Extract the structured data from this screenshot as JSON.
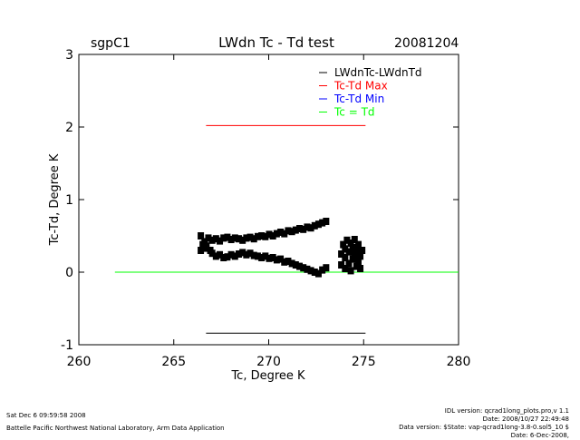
{
  "header": {
    "site": "sgpC1",
    "title": "LWdn Tc - Td test",
    "date": "20081204"
  },
  "footer": {
    "left": [
      "Sat Dec  6 09:59:58 2008",
      "Battelle Pacific Northwest National Laboratory, Arm Data Application"
    ],
    "right": [
      "IDL version: qcrad1long_plots.pro,v 1.1",
      "Date: 2008/10/27 22:49:48",
      "Data version: $State: vap-qcrad1long-3.8-0.sol5_10 $",
      "Date: 6-Dec-2008,"
    ]
  },
  "chart_data": {
    "type": "scatter",
    "xlabel": "Tc, Degree K",
    "ylabel": "Tc-Td, Degree K",
    "xlim": [
      260,
      280
    ],
    "ylim": [
      -1,
      3
    ],
    "xticks": [
      "260",
      "265",
      "270",
      "275",
      "280"
    ],
    "yticks": [
      "-1",
      "0",
      "1",
      "2",
      "3"
    ],
    "grid": false,
    "legend_placement": "top-right",
    "legend": [
      {
        "label": "LWdnTc-LWdnTd",
        "color": "#000000"
      },
      {
        "label": "Tc-Td Max",
        "color": "#ff0000"
      },
      {
        "label": "Tc-Td Min",
        "color": "#0000ff"
      },
      {
        "label": "Tc = Td",
        "color": "#00ff00"
      }
    ],
    "lines": [
      {
        "name": "Tc-Td Max",
        "color": "#ff0000",
        "x": [
          266.7,
          275.1
        ],
        "y": [
          2.02,
          2.02
        ]
      },
      {
        "name": "Tc-Td Min",
        "color": "#000000",
        "x": [
          266.7,
          275.1
        ],
        "y": [
          -0.84,
          -0.84
        ]
      },
      {
        "name": "Tc = Td",
        "color": "#00ff00",
        "x": [
          261.9,
          280
        ],
        "y": [
          0,
          0
        ]
      }
    ],
    "series": [
      {
        "name": "LWdnTc-LWdnTd",
        "color": "#000000",
        "points": [
          [
            266.4,
            0.5
          ],
          [
            266.6,
            0.42
          ],
          [
            266.8,
            0.47
          ],
          [
            267.0,
            0.44
          ],
          [
            267.2,
            0.46
          ],
          [
            267.4,
            0.43
          ],
          [
            267.6,
            0.47
          ],
          [
            267.8,
            0.48
          ],
          [
            268.0,
            0.45
          ],
          [
            268.2,
            0.47
          ],
          [
            268.4,
            0.46
          ],
          [
            268.6,
            0.44
          ],
          [
            268.8,
            0.47
          ],
          [
            269.0,
            0.48
          ],
          [
            269.2,
            0.46
          ],
          [
            269.4,
            0.49
          ],
          [
            269.6,
            0.5
          ],
          [
            269.8,
            0.49
          ],
          [
            270.0,
            0.52
          ],
          [
            270.2,
            0.5
          ],
          [
            270.4,
            0.53
          ],
          [
            270.6,
            0.55
          ],
          [
            270.8,
            0.53
          ],
          [
            271.0,
            0.57
          ],
          [
            271.2,
            0.56
          ],
          [
            271.4,
            0.58
          ],
          [
            271.6,
            0.6
          ],
          [
            271.8,
            0.59
          ],
          [
            272.0,
            0.62
          ],
          [
            272.2,
            0.61
          ],
          [
            272.4,
            0.64
          ],
          [
            272.6,
            0.66
          ],
          [
            272.8,
            0.68
          ],
          [
            273.0,
            0.7
          ],
          [
            266.4,
            0.3
          ],
          [
            266.5,
            0.38
          ],
          [
            266.6,
            0.33
          ],
          [
            266.7,
            0.36
          ],
          [
            266.9,
            0.3
          ],
          [
            267.0,
            0.26
          ],
          [
            267.2,
            0.22
          ],
          [
            267.4,
            0.24
          ],
          [
            267.6,
            0.2
          ],
          [
            267.8,
            0.21
          ],
          [
            268.0,
            0.24
          ],
          [
            268.2,
            0.22
          ],
          [
            268.4,
            0.25
          ],
          [
            268.6,
            0.27
          ],
          [
            268.8,
            0.24
          ],
          [
            269.0,
            0.26
          ],
          [
            269.2,
            0.23
          ],
          [
            269.4,
            0.22
          ],
          [
            269.6,
            0.2
          ],
          [
            269.8,
            0.22
          ],
          [
            270.0,
            0.19
          ],
          [
            270.2,
            0.2
          ],
          [
            270.4,
            0.17
          ],
          [
            270.6,
            0.18
          ],
          [
            270.8,
            0.14
          ],
          [
            271.0,
            0.15
          ],
          [
            271.2,
            0.12
          ],
          [
            271.4,
            0.1
          ],
          [
            271.6,
            0.08
          ],
          [
            271.8,
            0.06
          ],
          [
            272.0,
            0.04
          ],
          [
            272.2,
            0.02
          ],
          [
            272.4,
            0.0
          ],
          [
            272.6,
            -0.02
          ],
          [
            272.8,
            0.03
          ],
          [
            273.0,
            0.06
          ],
          [
            273.8,
            0.1
          ],
          [
            273.8,
            0.25
          ],
          [
            273.9,
            0.38
          ],
          [
            274.0,
            0.05
          ],
          [
            274.0,
            0.2
          ],
          [
            274.0,
            0.32
          ],
          [
            274.1,
            0.44
          ],
          [
            274.2,
            0.12
          ],
          [
            274.2,
            0.28
          ],
          [
            274.3,
            0.4
          ],
          [
            274.3,
            0.02
          ],
          [
            274.4,
            0.18
          ],
          [
            274.4,
            0.34
          ],
          [
            274.5,
            0.25
          ],
          [
            274.5,
            0.45
          ],
          [
            274.6,
            0.08
          ],
          [
            274.6,
            0.3
          ],
          [
            274.7,
            0.15
          ],
          [
            274.7,
            0.38
          ],
          [
            274.8,
            0.22
          ],
          [
            274.8,
            0.05
          ],
          [
            274.9,
            0.3
          ]
        ]
      }
    ]
  }
}
